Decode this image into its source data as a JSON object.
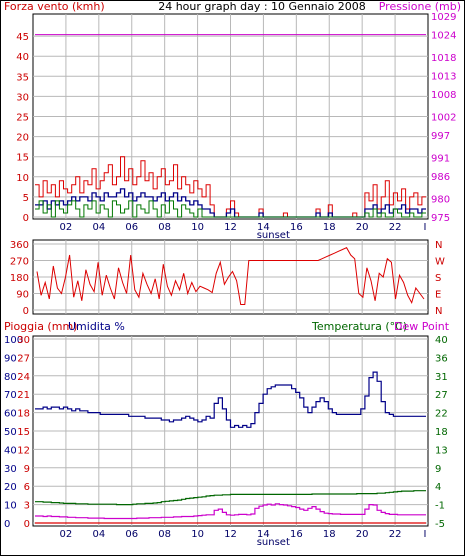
{
  "header": {
    "left_label": "Forza vento (kmh)",
    "center_label": "24 hour graph day : 10 Gennaio 2008",
    "right_label": "Pressione (mb)"
  },
  "colors": {
    "wind": "#dd0000",
    "gust": "#dd0000",
    "avg": "#000088",
    "green": "#007700",
    "pressure": "#cc00cc",
    "humidity": "#000088",
    "temperature": "#006600",
    "dewpoint": "#cc00cc",
    "rain": "#dd0000",
    "grid": "#b8b8b8",
    "axis_left": "#cc0000",
    "axis_right": "#cc00cc"
  },
  "chart_data": [
    {
      "id": "wind-pressure",
      "type": "line",
      "x_ticks": [
        "02",
        "04",
        "06",
        "08",
        "10",
        "12",
        "14",
        "16",
        "18",
        "20",
        "22"
      ],
      "x_ticks_right_mark": "I",
      "xlabel": "sunset",
      "left_axis": {
        "ticks": [
          0,
          5,
          10,
          15,
          20,
          25,
          30,
          35,
          40,
          45
        ],
        "range": [
          0,
          50
        ]
      },
      "right_axis": {
        "ticks": [
          975,
          980,
          986,
          991,
          997,
          1002,
          1008,
          1013,
          1018,
          1024,
          1029
        ],
        "range": [
          975,
          1029
        ]
      },
      "series": [
        {
          "key": "gust",
          "values": [
            8,
            5,
            9,
            6,
            8,
            5,
            9,
            7,
            6,
            8,
            10,
            6,
            9,
            8,
            12,
            7,
            9,
            11,
            13,
            8,
            10,
            15,
            9,
            12,
            8,
            10,
            14,
            9,
            11,
            7,
            10,
            12,
            8,
            9,
            13,
            7,
            10,
            8,
            6,
            9,
            7,
            5,
            8,
            3,
            0,
            0,
            0,
            2,
            4,
            1,
            0,
            0,
            0,
            0,
            0,
            2,
            0,
            0,
            0,
            0,
            0,
            1,
            0,
            0,
            0,
            0,
            0,
            0,
            0,
            2,
            0,
            0,
            3,
            0,
            0,
            0,
            0,
            0,
            1,
            0,
            0,
            6,
            4,
            8,
            2,
            5,
            9,
            3,
            6,
            4,
            7,
            2,
            5,
            6,
            3,
            5
          ]
        },
        {
          "key": "avg",
          "values": [
            3,
            3,
            4,
            2,
            4,
            3,
            4,
            3,
            4,
            5,
            4,
            5,
            5,
            4,
            6,
            5,
            4,
            6,
            5,
            5,
            6,
            7,
            5,
            6,
            4,
            5,
            6,
            5,
            5,
            4,
            5,
            6,
            4,
            5,
            6,
            4,
            5,
            4,
            3,
            4,
            3,
            2,
            2,
            1,
            0,
            0,
            0,
            1,
            2,
            0,
            0,
            0,
            0,
            0,
            0,
            1,
            0,
            0,
            0,
            0,
            0,
            0,
            0,
            0,
            0,
            0,
            0,
            0,
            0,
            1,
            0,
            0,
            1,
            0,
            0,
            0,
            0,
            0,
            0,
            0,
            0,
            2,
            2,
            3,
            1,
            2,
            3,
            1,
            2,
            2,
            3,
            1,
            2,
            2,
            1,
            2
          ]
        },
        {
          "key": "green",
          "values": [
            2,
            4,
            1,
            3,
            0,
            4,
            2,
            1,
            3,
            4,
            2,
            0,
            3,
            2,
            4,
            1,
            3,
            2,
            0,
            4,
            3,
            1,
            2,
            4,
            0,
            3,
            2,
            1,
            4,
            2,
            0,
            3,
            1,
            4,
            2,
            0,
            3,
            2,
            1,
            0,
            2,
            0,
            0,
            0,
            0,
            0,
            0,
            0,
            0,
            0,
            0,
            0,
            0,
            0,
            0,
            0,
            0,
            0,
            0,
            0,
            0,
            0,
            0,
            0,
            0,
            0,
            0,
            0,
            0,
            0,
            0,
            0,
            0,
            0,
            0,
            0,
            0,
            0,
            0,
            0,
            0,
            1,
            0,
            2,
            0,
            1,
            0,
            0,
            2,
            1,
            0,
            0,
            1,
            0,
            0,
            1
          ]
        },
        {
          "key": "pressure",
          "values": [
            1024,
            1024,
            1024,
            1024,
            1024,
            1024,
            1024,
            1024,
            1024,
            1024,
            1024,
            1024,
            1024,
            1024,
            1024,
            1024,
            1024,
            1024,
            1024,
            1024,
            1024,
            1024,
            1024,
            1024,
            1024,
            1024,
            1024,
            1024,
            1024,
            1024,
            1024,
            1024,
            1024,
            1024,
            1024,
            1024,
            1024,
            1024,
            1024,
            1024,
            1024,
            1024,
            1024,
            1024,
            1024,
            1024,
            1024,
            1024,
            1024,
            1024,
            1024,
            1024,
            1024,
            1024,
            1024,
            1024,
            1024,
            1024,
            1024,
            1024,
            1024,
            1024,
            1024,
            1024,
            1024,
            1024,
            1024,
            1024,
            1024,
            1024,
            1024,
            1024,
            1024,
            1024,
            1024,
            1024,
            1024,
            1024,
            1024,
            1024,
            1024,
            1024,
            1024,
            1024,
            1024,
            1024,
            1024,
            1024,
            1024,
            1024,
            1024,
            1024,
            1024,
            1024,
            1024,
            1024
          ]
        }
      ]
    },
    {
      "id": "wind-direction",
      "type": "line",
      "left_axis": {
        "ticks": [
          0,
          90,
          180,
          270,
          360
        ],
        "range": [
          0,
          360
        ]
      },
      "right_axis": {
        "ticks": [
          "N",
          "W",
          "S",
          "E",
          "N"
        ]
      },
      "series": [
        {
          "key": "direction",
          "values": [
            210,
            80,
            150,
            60,
            240,
            120,
            90,
            180,
            300,
            70,
            160,
            50,
            220,
            140,
            100,
            260,
            80,
            190,
            120,
            60,
            230,
            150,
            90,
            300,
            110,
            70,
            200,
            140,
            90,
            170,
            60,
            250,
            130,
            80,
            160,
            110,
            200,
            90,
            150,
            100,
            130,
            120,
            110,
            95,
            200,
            260,
            140,
            180,
            210,
            160,
            30,
            30,
            270,
            270,
            270,
            270,
            270,
            270,
            270,
            270,
            270,
            270,
            270,
            270,
            270,
            270,
            270,
            270,
            270,
            270,
            280,
            290,
            300,
            310,
            320,
            330,
            340,
            300,
            280,
            90,
            70,
            230,
            160,
            50,
            200,
            180,
            280,
            260,
            60,
            190,
            150,
            80,
            40,
            120,
            90,
            60
          ]
        }
      ]
    },
    {
      "id": "rain-humidity-temperature",
      "type": "line",
      "labels": {
        "rain": "Pioggia (mm)",
        "humidity": "Umidita %",
        "temperature": "Temperatura (°C)",
        "dewpoint": "Dew Point"
      },
      "x_ticks": [
        "02",
        "04",
        "06",
        "08",
        "10",
        "12",
        "14",
        "16",
        "18",
        "20",
        "22"
      ],
      "x_ticks_right_mark": "I",
      "xlabel": "sunset",
      "rain_axis": {
        "ticks": [
          0,
          3,
          6,
          9,
          12,
          15,
          18,
          21,
          24,
          27,
          30
        ],
        "range": [
          0,
          30
        ]
      },
      "humidity_axis": {
        "ticks": [
          0,
          10,
          20,
          30,
          40,
          50,
          60,
          70,
          80,
          90,
          100
        ],
        "range": [
          0,
          100
        ]
      },
      "temperature_axis": {
        "ticks": [
          -5,
          -1,
          4,
          9,
          13,
          18,
          22,
          27,
          31,
          36,
          40
        ],
        "range": [
          -5,
          40
        ]
      },
      "series": [
        {
          "key": "humidity",
          "values": [
            62,
            62,
            63,
            62,
            63,
            63,
            62,
            63,
            62,
            61,
            62,
            61,
            61,
            60,
            60,
            60,
            59,
            59,
            59,
            59,
            59,
            59,
            59,
            58,
            58,
            58,
            58,
            57,
            57,
            57,
            57,
            56,
            56,
            55,
            56,
            56,
            57,
            58,
            57,
            56,
            55,
            56,
            58,
            57,
            65,
            68,
            62,
            56,
            52,
            53,
            52,
            53,
            52,
            54,
            60,
            65,
            70,
            73,
            74,
            75,
            75,
            75,
            75,
            73,
            71,
            68,
            63,
            60,
            63,
            66,
            68,
            66,
            62,
            60,
            59,
            59,
            59,
            59,
            59,
            59,
            62,
            69,
            79,
            82,
            77,
            66,
            60,
            59,
            58,
            58,
            58,
            58,
            58,
            58,
            58,
            58
          ]
        },
        {
          "key": "temperature",
          "values": [
            0.2,
            0.2,
            0.1,
            0.1,
            0.0,
            0.0,
            -0.1,
            -0.2,
            -0.2,
            -0.2,
            -0.3,
            -0.3,
            -0.3,
            -0.4,
            -0.4,
            -0.4,
            -0.4,
            -0.4,
            -0.4,
            -0.4,
            -0.5,
            -0.5,
            -0.5,
            -0.5,
            -0.4,
            -0.3,
            -0.3,
            -0.2,
            -0.2,
            -0.1,
            0.0,
            0.2,
            0.3,
            0.4,
            0.5,
            0.6,
            0.8,
            1.0,
            1.1,
            1.2,
            1.3,
            1.4,
            1.6,
            1.7,
            1.8,
            1.8,
            1.9,
            1.9,
            2.0,
            2.0,
            2.0,
            2.0,
            2.0,
            2.0,
            2.0,
            2.0,
            2.0,
            2.0,
            2.0,
            2.0,
            2.0,
            2.0,
            2.0,
            2.0,
            2.0,
            2.0,
            2.0,
            2.0,
            2.1,
            2.1,
            2.1,
            2.1,
            2.1,
            2.1,
            2.1,
            2.1,
            2.1,
            2.1,
            2.1,
            2.2,
            2.2,
            2.2,
            2.2,
            2.2,
            2.3,
            2.3,
            2.4,
            2.5,
            2.6,
            2.7,
            2.8,
            2.8,
            2.8,
            2.9,
            2.9,
            2.9
          ]
        },
        {
          "key": "dewpoint",
          "values": [
            -3.3,
            -3.3,
            -3.4,
            -3.3,
            -3.4,
            -3.4,
            -3.5,
            -3.5,
            -3.6,
            -3.6,
            -3.7,
            -3.7,
            -3.7,
            -3.8,
            -3.8,
            -3.8,
            -3.8,
            -3.9,
            -3.9,
            -3.9,
            -3.9,
            -3.9,
            -3.9,
            -3.9,
            -3.9,
            -3.8,
            -3.8,
            -3.8,
            -3.7,
            -3.7,
            -3.7,
            -3.6,
            -3.6,
            -3.6,
            -3.5,
            -3.5,
            -3.4,
            -3.4,
            -3.4,
            -3.3,
            -3.2,
            -3.1,
            -3.0,
            -3.0,
            -1.9,
            -1.6,
            -2.4,
            -3.0,
            -3.1,
            -3.0,
            -2.9,
            -2.9,
            -3.0,
            -2.8,
            -1.4,
            -0.9,
            -0.6,
            -0.4,
            -0.6,
            -0.3,
            -0.5,
            -0.6,
            -0.8,
            -1.0,
            -1.2,
            -1.6,
            -1.9,
            -1.4,
            -1.0,
            -1.6,
            -2.2,
            -2.6,
            -2.7,
            -2.8,
            -2.8,
            -2.9,
            -2.9,
            -2.9,
            -2.9,
            -2.9,
            -2.9,
            -1.6,
            -0.5,
            -0.6,
            -1.9,
            -2.4,
            -2.7,
            -2.9,
            -2.9,
            -3.0,
            -3.0,
            -3.0,
            -3.0,
            -3.0,
            -3.0,
            -3.0
          ]
        },
        {
          "key": "rain",
          "values": [
            0,
            0,
            0,
            0,
            0,
            0,
            0,
            0,
            0,
            0,
            0,
            0,
            0,
            0,
            0,
            0,
            0,
            0,
            0,
            0,
            0,
            0,
            0,
            0,
            0,
            0,
            0,
            0,
            0,
            0,
            0,
            0,
            0,
            0,
            0,
            0,
            0,
            0,
            0,
            0,
            0,
            0,
            0,
            0,
            0,
            0,
            0,
            0,
            0,
            0,
            0,
            0,
            0,
            0,
            0,
            0,
            0,
            0,
            0,
            0,
            0,
            0,
            0,
            0,
            0,
            0,
            0,
            0,
            0,
            0,
            0,
            0,
            0,
            0,
            0,
            0,
            0,
            0,
            0,
            0,
            0,
            0,
            0,
            0,
            0,
            0,
            0,
            0,
            0,
            0,
            0,
            0,
            0,
            0,
            0,
            0
          ]
        }
      ]
    }
  ]
}
